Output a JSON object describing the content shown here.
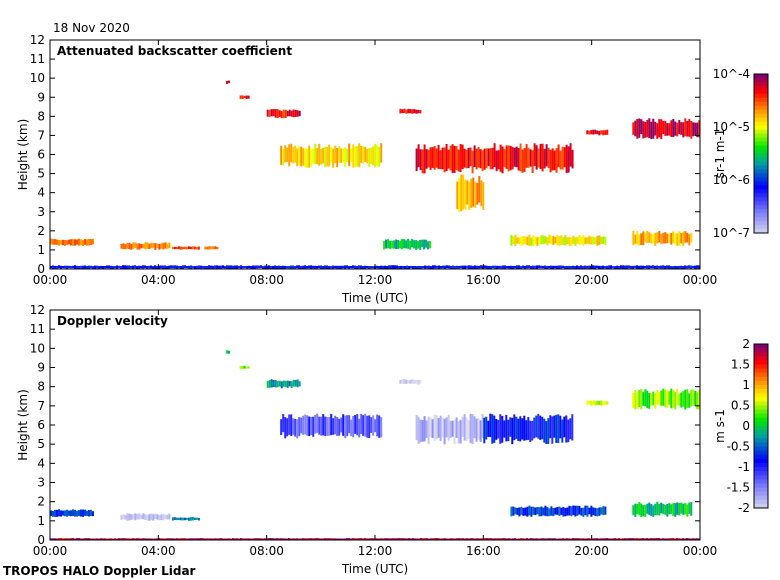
{
  "date": "18 Nov 2020",
  "footer": "TROPOS HALO Doppler Lidar",
  "chart_data": [
    {
      "type": "heatmap",
      "title": "Attenuated backscatter coefficient",
      "xlabel": "Time (UTC)",
      "ylabel": "Height (km)",
      "xlim": [
        0,
        24
      ],
      "ylim": [
        0,
        12
      ],
      "xticks": [
        "00:00",
        "04:00",
        "08:00",
        "12:00",
        "16:00",
        "20:00",
        "00:00"
      ],
      "yticks": [
        "0",
        "1",
        "2",
        "3",
        "4",
        "5",
        "6",
        "7",
        "8",
        "9",
        "10",
        "11",
        "12"
      ],
      "colorbar": {
        "label": "sr-1 m-1",
        "scale": "log",
        "range": [
          1e-07,
          0.0001
        ],
        "ticks": [
          "10^-7",
          "10^-6",
          "10^-5",
          "10^-4"
        ]
      },
      "features": [
        {
          "t": [
            0.0,
            1.6
          ],
          "h": [
            1.2,
            1.6
          ],
          "value": 0.8
        },
        {
          "t": [
            2.6,
            4.4
          ],
          "h": [
            1.0,
            1.4
          ],
          "value": 0.8
        },
        {
          "t": [
            4.5,
            5.5
          ],
          "h": [
            1.0,
            1.2
          ],
          "value": 0.85
        },
        {
          "t": [
            5.7,
            6.2
          ],
          "h": [
            1.0,
            1.2
          ],
          "value": 0.8
        },
        {
          "t": [
            6.5,
            6.6
          ],
          "h": [
            9.7,
            9.9
          ],
          "value": 0.9
        },
        {
          "t": [
            7.0,
            7.3
          ],
          "h": [
            8.9,
            9.1
          ],
          "value": 0.9
        },
        {
          "t": [
            8.0,
            9.2
          ],
          "h": [
            7.9,
            8.4
          ],
          "value": 0.9
        },
        {
          "t": [
            8.5,
            12.2
          ],
          "h": [
            5.3,
            6.6
          ],
          "value": 0.72
        },
        {
          "t": [
            12.9,
            13.7
          ],
          "h": [
            8.1,
            8.4
          ],
          "value": 0.9
        },
        {
          "t": [
            13.5,
            19.3
          ],
          "h": [
            5.0,
            6.6
          ],
          "value": 0.9
        },
        {
          "t": [
            15.0,
            16.0
          ],
          "h": [
            3.0,
            5.0
          ],
          "value": 0.75
        },
        {
          "t": [
            19.8,
            20.6
          ],
          "h": [
            7.0,
            7.3
          ],
          "value": 0.9
        },
        {
          "t": [
            21.5,
            24.0
          ],
          "h": [
            6.8,
            7.9
          ],
          "value": 0.95
        },
        {
          "t": [
            17.0,
            20.5
          ],
          "h": [
            1.2,
            1.8
          ],
          "value": 0.7
        },
        {
          "t": [
            21.5,
            23.7
          ],
          "h": [
            1.2,
            2.0
          ],
          "value": 0.75
        },
        {
          "t": [
            12.3,
            14.0
          ],
          "h": [
            1.0,
            1.6
          ],
          "value": 0.5
        },
        {
          "t": [
            0.0,
            24.0
          ],
          "h": [
            0.0,
            0.2
          ],
          "value": 0.3
        }
      ]
    },
    {
      "type": "heatmap",
      "title": "Doppler velocity",
      "xlabel": "Time (UTC)",
      "ylabel": "Height (km)",
      "xlim": [
        0,
        24
      ],
      "ylim": [
        0,
        12
      ],
      "xticks": [
        "00:00",
        "04:00",
        "08:00",
        "12:00",
        "16:00",
        "20:00",
        "00:00"
      ],
      "yticks": [
        "0",
        "1",
        "2",
        "3",
        "4",
        "5",
        "6",
        "7",
        "8",
        "9",
        "10",
        "11",
        "12"
      ],
      "colorbar": {
        "label": "m s-1",
        "scale": "linear",
        "range": [
          -2,
          2
        ],
        "ticks": [
          "2",
          "1.5",
          "1",
          "0.5",
          "0",
          "-0.5",
          "-1",
          "-1.5",
          "-2"
        ]
      },
      "features": [
        {
          "t": [
            0.0,
            1.6
          ],
          "h": [
            1.2,
            1.6
          ],
          "value": 0.35
        },
        {
          "t": [
            2.6,
            4.4
          ],
          "h": [
            1.0,
            1.4
          ],
          "value": 0.05
        },
        {
          "t": [
            4.5,
            5.5
          ],
          "h": [
            1.0,
            1.2
          ],
          "value": 0.4
        },
        {
          "t": [
            6.5,
            6.6
          ],
          "h": [
            9.7,
            9.9
          ],
          "value": 0.5
        },
        {
          "t": [
            7.0,
            7.3
          ],
          "h": [
            8.9,
            9.1
          ],
          "value": 0.6
        },
        {
          "t": [
            8.0,
            9.2
          ],
          "h": [
            7.9,
            8.4
          ],
          "value": 0.45
        },
        {
          "t": [
            8.5,
            12.2
          ],
          "h": [
            5.3,
            6.6
          ],
          "value": 0.2
        },
        {
          "t": [
            12.9,
            13.7
          ],
          "h": [
            8.1,
            8.4
          ],
          "value": 0.02
        },
        {
          "t": [
            13.5,
            16.0
          ],
          "h": [
            5.0,
            6.6
          ],
          "value": 0.05
        },
        {
          "t": [
            16.0,
            19.3
          ],
          "h": [
            5.0,
            6.6
          ],
          "value": 0.3
        },
        {
          "t": [
            19.8,
            20.6
          ],
          "h": [
            7.0,
            7.3
          ],
          "value": 0.65
        },
        {
          "t": [
            21.5,
            24.0
          ],
          "h": [
            6.8,
            7.9
          ],
          "value": 0.6
        },
        {
          "t": [
            17.0,
            20.5
          ],
          "h": [
            1.2,
            1.8
          ],
          "value": 0.35
        },
        {
          "t": [
            21.5,
            23.7
          ],
          "h": [
            1.2,
            2.0
          ],
          "value": 0.5
        },
        {
          "t": [
            0.0,
            24.0
          ],
          "h": [
            0.0,
            0.1
          ],
          "value": 0.97
        }
      ]
    }
  ]
}
